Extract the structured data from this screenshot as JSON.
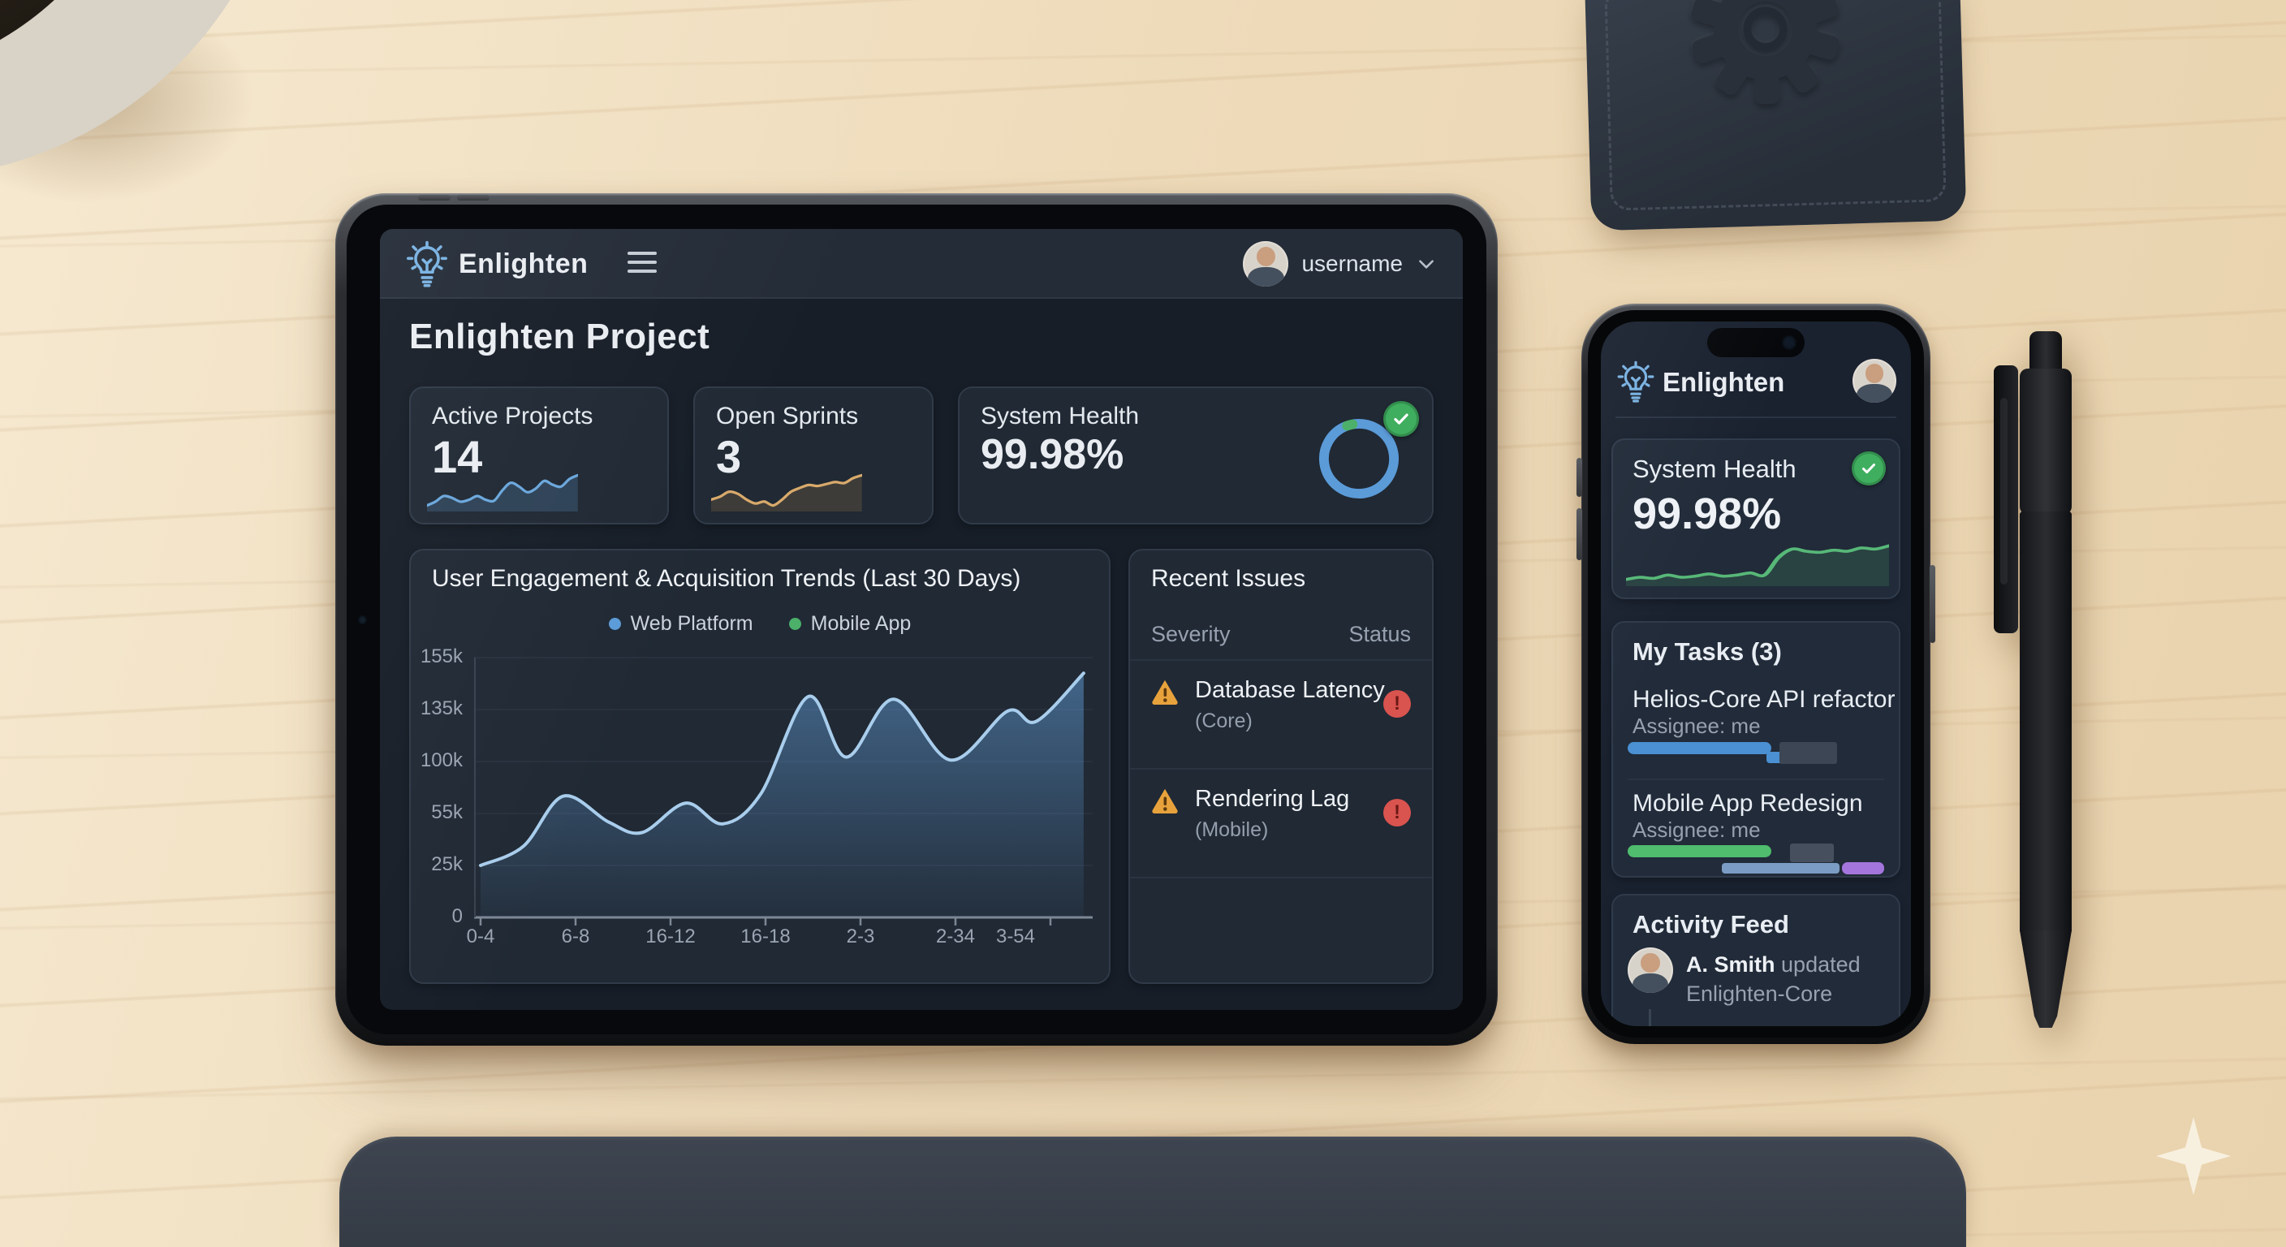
{
  "ui_colors": {
    "accent_blue": "#5b9bd8",
    "accent_green": "#4cb06a",
    "accent_orange": "#d9aa6b",
    "accent_purple": "#a475dc",
    "warning_amber": "#e8a23c",
    "error_red": "#d9534f",
    "screen_bg": "#171e28",
    "card_bg": "#212a37",
    "text_primary": "#e9edf2",
    "text_secondary": "#97a1b0"
  },
  "tablet": {
    "header": {
      "app_name": "Enlighten",
      "username": "username"
    },
    "page_title": "Enlighten Project",
    "stats": {
      "active_projects": {
        "label": "Active Projects",
        "value": "14"
      },
      "open_sprints": {
        "label": "Open Sprints",
        "value": "3"
      },
      "system_health": {
        "label": "System Health",
        "value": "99.98%"
      }
    },
    "issues": {
      "title": "Recent Issues",
      "columns": {
        "severity": "Severity",
        "status": "Status"
      },
      "items": [
        {
          "name": "Database Latency",
          "scope": "(Core)",
          "severity": "warning",
          "status": "error"
        },
        {
          "name": "Rendering Lag",
          "scope": "(Mobile)",
          "severity": "warning",
          "status": "error"
        }
      ]
    }
  },
  "phone": {
    "header": {
      "app_name": "Enlighten"
    },
    "health": {
      "label": "System Health",
      "value": "99.98%"
    },
    "tasks": {
      "title": "My Tasks (3)",
      "items": [
        {
          "name": "Helios-Core API refactor",
          "assignee": "Assignee: me",
          "bars": [
            {
              "color": "#4a90d2",
              "left": 0,
              "width": 55,
              "top": 2,
              "height": 15,
              "r": 8
            },
            {
              "color": "#4a90d2",
              "left": 53,
              "width": 7,
              "top": 14,
              "height": 14,
              "r": 4
            },
            {
              "color": "#3d4654",
              "left": 58,
              "width": 22,
              "top": 2,
              "height": 27,
              "r": 3
            }
          ]
        },
        {
          "name": "Mobile App Redesign",
          "assignee": "Assignee: me",
          "bars": [
            {
              "color": "#4fbc6e",
              "left": 0,
              "width": 55,
              "top": 2,
              "height": 15,
              "r": 8
            },
            {
              "color": "#454f5d",
              "left": 62,
              "width": 17,
              "top": 0,
              "height": 23,
              "r": 3
            },
            {
              "color": "#7b9cc4",
              "left": 36,
              "width": 45,
              "top": 24,
              "height": 13,
              "r": 4
            },
            {
              "color": "#a475dc",
              "left": 82,
              "width": 16,
              "top": 23,
              "height": 15,
              "r": 7
            }
          ]
        }
      ]
    },
    "activity": {
      "title": "Activity Feed",
      "items": [
        {
          "actor": "A. Smith",
          "action": "updated",
          "target": "Enlighten-Core"
        }
      ]
    }
  },
  "chart_data": [
    {
      "id": "engagement-trends",
      "type": "area",
      "title": "User Engagement & Acquisition Trends (Last 30 Days)",
      "legend": [
        {
          "name": "Web Platform",
          "color": "#5b9bd8"
        },
        {
          "name": "Mobile App",
          "color": "#4cb06a"
        }
      ],
      "legend_position": "top-center",
      "grid": true,
      "x_tick_labels": [
        "0-4",
        "6-8",
        "16-12",
        "16-18",
        "2-3",
        "2-34",
        "3-54"
      ],
      "y_tick_labels": [
        "155k",
        "135k",
        "100k",
        "55k",
        "25k",
        "0"
      ],
      "y_scale_k": [
        0,
        25,
        55,
        100,
        135,
        155
      ],
      "series": [
        {
          "name": "Web Platform",
          "color": "#5b9bd8",
          "points": [
            {
              "t": 0,
              "v": 25
            },
            {
              "t": 0.45,
              "v": 36
            },
            {
              "t": 0.87,
              "v": 70
            },
            {
              "t": 1.35,
              "v": 50
            },
            {
              "t": 1.7,
              "v": 44
            },
            {
              "t": 2.16,
              "v": 64
            },
            {
              "t": 2.55,
              "v": 49
            },
            {
              "t": 2.95,
              "v": 72
            },
            {
              "t": 3.45,
              "v": 140
            },
            {
              "t": 3.85,
              "v": 103
            },
            {
              "t": 4.35,
              "v": 139
            },
            {
              "t": 4.95,
              "v": 101
            },
            {
              "t": 5.55,
              "v": 134
            },
            {
              "t": 5.85,
              "v": 127
            },
            {
              "t": 6.35,
              "v": 149
            }
          ]
        }
      ]
    },
    {
      "id": "active-projects-spark",
      "type": "line",
      "color": "#6aa7dc",
      "fill": "rgba(95,156,216,0.22)",
      "values": [
        20,
        24,
        30,
        28,
        24,
        26,
        30,
        26,
        25,
        36,
        44,
        40,
        34,
        38,
        46,
        42,
        40,
        48,
        52
      ]
    },
    {
      "id": "open-sprints-spark",
      "type": "line",
      "color": "#d9aa6b",
      "fill": "rgba(201,148,82,0.18)",
      "values": [
        30,
        33,
        38,
        36,
        30,
        26,
        28,
        24,
        30,
        38,
        42,
        45,
        44,
        46,
        48,
        47,
        52,
        55
      ]
    },
    {
      "id": "system-health-donut",
      "type": "donut",
      "value_pct": 99.98,
      "ring_color": "#5b9bd8",
      "tick_color": "#4cb06a"
    },
    {
      "id": "phone-health-spark",
      "type": "line",
      "color": "#57b878",
      "fill": "rgba(87,184,120,0.16)",
      "values": [
        22,
        24,
        23,
        26,
        24,
        25,
        27,
        25,
        26,
        28,
        26,
        42,
        50,
        48,
        47,
        49,
        48,
        51,
        50,
        53
      ]
    }
  ]
}
